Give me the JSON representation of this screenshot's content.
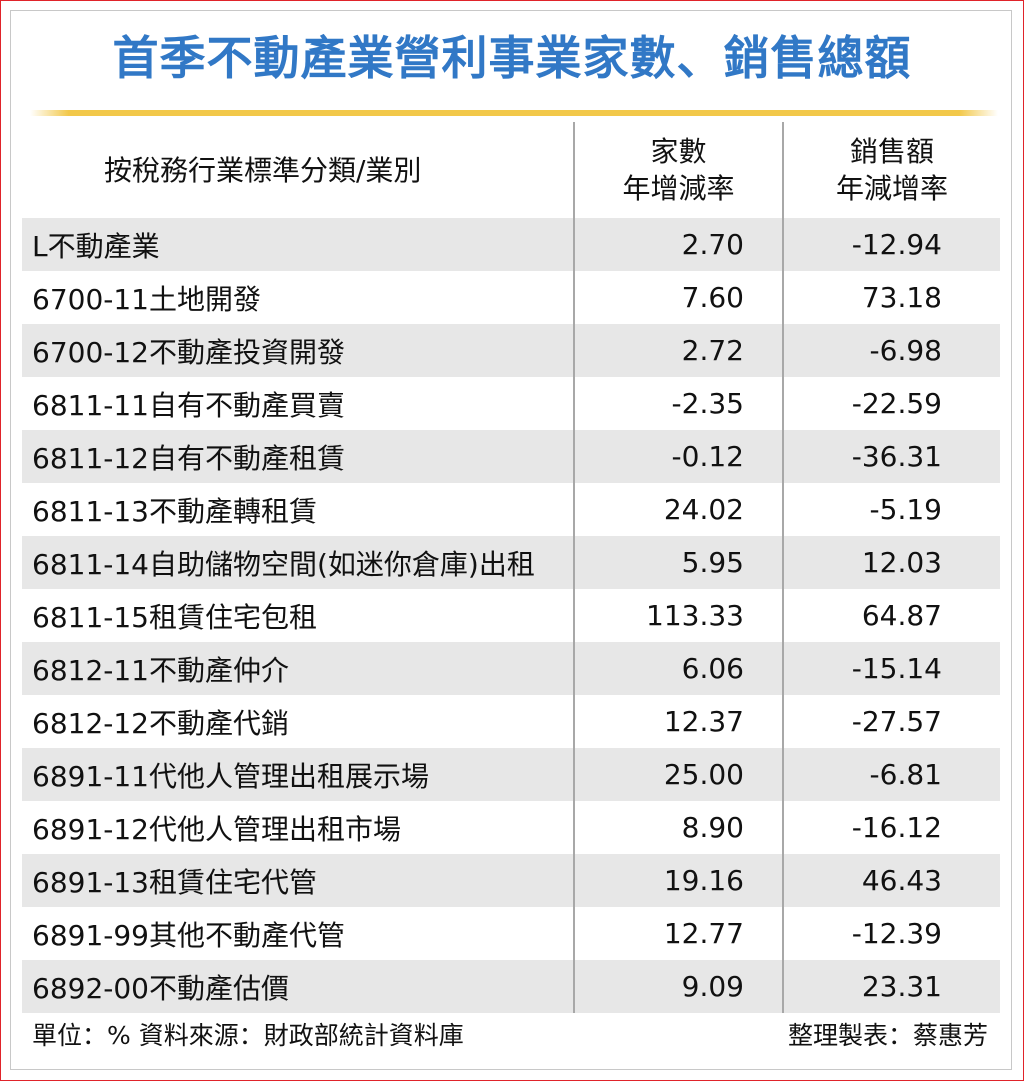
{
  "title": "首季不動產業營利事業家數、銷售總額",
  "chart_data": {
    "type": "table",
    "columns": [
      "按稅務行業標準分類/業別",
      "家數\n年增減率",
      "銷售額\n年減增率"
    ],
    "header": {
      "category": "按稅務行業標準分類/業別",
      "col2_line1": "家數",
      "col2_line2": "年增減率",
      "col3_line1": "銷售額",
      "col3_line2": "年減增率"
    },
    "rows": [
      {
        "category": "L不動產業",
        "establishments_yoy": "2.70",
        "sales_yoy": "-12.94"
      },
      {
        "category": "6700-11土地開發",
        "establishments_yoy": "7.60",
        "sales_yoy": "73.18"
      },
      {
        "category": "6700-12不動產投資開發",
        "establishments_yoy": "2.72",
        "sales_yoy": "-6.98"
      },
      {
        "category": "6811-11自有不動產買賣",
        "establishments_yoy": "-2.35",
        "sales_yoy": "-22.59"
      },
      {
        "category": "6811-12自有不動產租賃",
        "establishments_yoy": "-0.12",
        "sales_yoy": "-36.31"
      },
      {
        "category": "6811-13不動產轉租賃",
        "establishments_yoy": "24.02",
        "sales_yoy": "-5.19"
      },
      {
        "category": "6811-14自助儲物空間(如迷你倉庫)出租",
        "establishments_yoy": "5.95",
        "sales_yoy": "12.03"
      },
      {
        "category": "6811-15租賃住宅包租",
        "establishments_yoy": "113.33",
        "sales_yoy": "64.87"
      },
      {
        "category": "6812-11不動產仲介",
        "establishments_yoy": "6.06",
        "sales_yoy": "-15.14"
      },
      {
        "category": "6812-12不動產代銷",
        "establishments_yoy": "12.37",
        "sales_yoy": "-27.57"
      },
      {
        "category": "6891-11代他人管理出租展示場",
        "establishments_yoy": "25.00",
        "sales_yoy": "-6.81"
      },
      {
        "category": "6891-12代他人管理出租市場",
        "establishments_yoy": "8.90",
        "sales_yoy": "-16.12"
      },
      {
        "category": "6891-13租賃住宅代管",
        "establishments_yoy": "19.16",
        "sales_yoy": "46.43"
      },
      {
        "category": "6891-99其他不動產代管",
        "establishments_yoy": "12.77",
        "sales_yoy": "-12.39"
      },
      {
        "category": "6892-00不動產估價",
        "establishments_yoy": "9.09",
        "sales_yoy": "23.31"
      }
    ]
  },
  "footer": {
    "source": "單位：%  資料來源：財政部統計資料庫",
    "credit": "整理製表：蔡惠芳"
  },
  "colors": {
    "title": "#3178c6",
    "rule": "#f2c84a",
    "stripe": "#e7e7e7",
    "frame": "#e0232a"
  }
}
